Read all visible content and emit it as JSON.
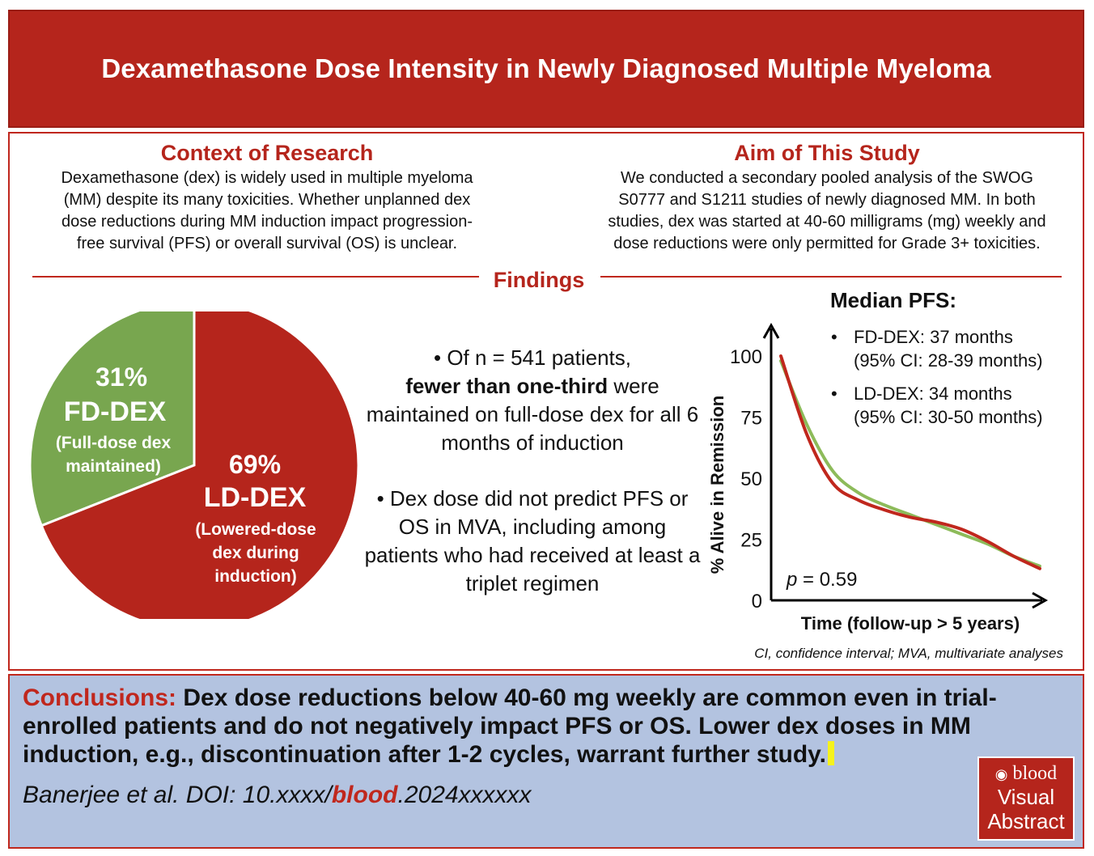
{
  "title": "Dexamethasone Dose Intensity in Newly Diagnosed Multiple Myeloma",
  "context": {
    "heading": "Context of Research",
    "lines": [
      "Dexamethasone (dex) is widely used in multiple myeloma",
      "(MM) despite its many toxicities. Whether unplanned dex",
      "dose reductions during MM induction impact progression-",
      "free survival (PFS) or overall survival (OS) is unclear."
    ]
  },
  "aim": {
    "heading": "Aim of This Study",
    "lines": [
      "We conducted a secondary pooled analysis of the SWOG",
      "S0777 and S1211 studies of newly diagnosed MM. In both",
      "studies, dex was started at 40-60 milligrams (mg) weekly and",
      "dose reductions were only permitted for Grade 3+ toxicities."
    ]
  },
  "findings_label": "Findings",
  "pie": {
    "slices": [
      {
        "pct": "31%",
        "name": "FD-DEX",
        "desc_lines": [
          "(Full-dose dex",
          "maintained)"
        ],
        "value": 31,
        "color": "#78a64f"
      },
      {
        "pct": "69%",
        "name": "LD-DEX",
        "desc_lines": [
          "(Lowered-dose",
          "dex during",
          "induction)"
        ],
        "value": 69,
        "color": "#b5251c"
      }
    ]
  },
  "bullets": {
    "b1_pre": "• Of n = 541 patients,",
    "b1_bold": "fewer than one-third",
    "b1_post": " were maintained on full-dose dex for all 6 months of induction",
    "b2": "• Dex dose did not predict PFS or OS in MVA, including among patients who had received at least a triplet regimen"
  },
  "median_pfs": {
    "title": "Median PFS:",
    "items": [
      {
        "bullet": "•",
        "line1": "FD-DEX: 37 months",
        "line2": "(95% CI: 28-39 months)"
      },
      {
        "bullet": "•",
        "line1": "LD-DEX: 34 months",
        "line2": "(95% CI: 30-50 months)"
      }
    ]
  },
  "chart_data": {
    "type": "line",
    "ylabel": "% Alive in Remission",
    "xlabel": "Time (follow-up > 5 years)",
    "yticks": [
      "100",
      "75",
      "50",
      "25",
      "0"
    ],
    "ylim": [
      0,
      100
    ],
    "x_note": "relative time (schematic, unlabeled ticks)",
    "annotation_p": "p",
    "annotation_rest": " = 0.59",
    "series": [
      {
        "name": "FD-DEX",
        "color": "#8dbb5a",
        "x": [
          0,
          0.1,
          0.2,
          0.3,
          0.4,
          0.5,
          0.6,
          0.7,
          0.8,
          0.9,
          1.0
        ],
        "y": [
          98,
          72,
          53,
          44,
          39,
          35,
          31,
          27,
          23,
          18,
          14
        ]
      },
      {
        "name": "LD-DEX",
        "color": "#c0271d",
        "x": [
          0,
          0.1,
          0.2,
          0.3,
          0.4,
          0.5,
          0.6,
          0.7,
          0.8,
          0.9,
          1.0
        ],
        "y": [
          100,
          68,
          48,
          41,
          37,
          34,
          32,
          29,
          24,
          18,
          13
        ]
      }
    ]
  },
  "footnote": "CI, confidence interval; MVA, multivariate analyses",
  "conclusion": {
    "label": "Conclusions:",
    "text": " Dex dose reductions below 40-60 mg weekly are common even in trial-enrolled patients and do not negatively impact PFS or OS. Lower dex doses in MM induction, e.g., discontinuation after 1-2 cycles, warrant further study."
  },
  "citation": {
    "pre": "Banerjee et al. DOI: 10.xxxx/",
    "journal": "blood",
    "post": ".2024xxxxxx"
  },
  "logo": {
    "line1": "blood",
    "line2": "Visual",
    "line3": "Abstract"
  }
}
